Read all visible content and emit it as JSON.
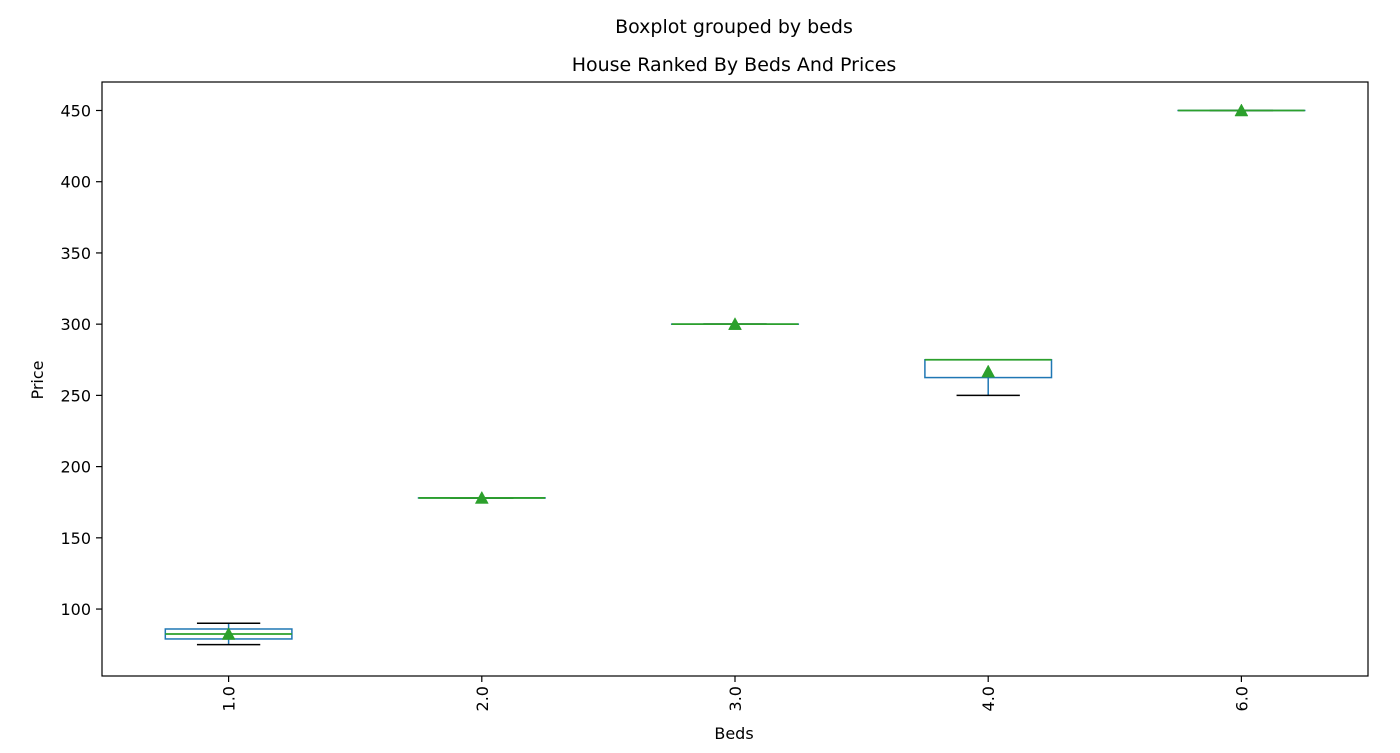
{
  "chart_data": {
    "type": "box",
    "suptitle": "Boxplot grouped by beds",
    "title": "House Ranked By Beds And Prices",
    "xlabel": "Beds",
    "ylabel": "Price",
    "ylim": [
      53,
      470
    ],
    "yticks": [
      100,
      150,
      200,
      250,
      300,
      350,
      400,
      450
    ],
    "grid": false,
    "x_tick_rotation": "vertical",
    "categories": [
      "1.0",
      "2.0",
      "3.0",
      "4.0",
      "6.0"
    ],
    "boxes": [
      {
        "category": "1.0",
        "whisker_low": 75,
        "q1": 79,
        "median": 82.5,
        "q3": 86,
        "whisker_high": 90,
        "mean": 82.5
      },
      {
        "category": "2.0",
        "whisker_low": 178,
        "q1": 178,
        "median": 178,
        "q3": 178,
        "whisker_high": 178,
        "mean": 178
      },
      {
        "category": "3.0",
        "whisker_low": 300,
        "q1": 300,
        "median": 300,
        "q3": 300,
        "whisker_high": 300,
        "mean": 300
      },
      {
        "category": "4.0",
        "whisker_low": 250,
        "q1": 262.5,
        "median": 275,
        "q3": 275,
        "whisker_high": 275,
        "mean": 266.7
      },
      {
        "category": "6.0",
        "whisker_low": 450,
        "q1": 450,
        "median": 450,
        "q3": 450,
        "whisker_high": 450,
        "mean": 450
      }
    ],
    "colors": {
      "box": "#1f77b4",
      "median": "#2ca02c",
      "mean_marker": "#2ca02c",
      "whisker": "#1f77b4",
      "cap": "#000000",
      "axes": "#000000"
    }
  }
}
